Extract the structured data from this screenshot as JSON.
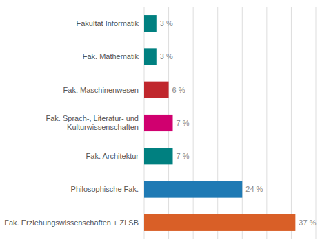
{
  "chart_data": {
    "type": "bar",
    "orientation": "horizontal",
    "categories": [
      "Fak. Erziehungswissenschaften + ZLSB",
      "Philosophische Fak.",
      "Fak. Architektur",
      "Fak. Sprach-, Literatur- und\nKulturwissenschaften",
      "Fak. Maschinenwesen",
      "Fak. Mathematik",
      "Fakultät Informatik"
    ],
    "values": [
      37,
      24,
      7,
      7,
      6,
      3,
      3
    ],
    "value_labels": [
      "37 %",
      "24 %",
      "7 %",
      "7 %",
      "6 %",
      "3 %",
      "3 %"
    ],
    "colors": [
      "#d95f27",
      "#1f7ab4",
      "#008080",
      "#d0006f",
      "#c0272d",
      "#008080",
      "#008080"
    ],
    "xlim": [
      0,
      42
    ],
    "xticks": [
      0,
      6,
      12,
      18,
      24,
      30,
      36,
      42
    ],
    "grid": true,
    "data_labels": true,
    "tick_labels": "y"
  }
}
